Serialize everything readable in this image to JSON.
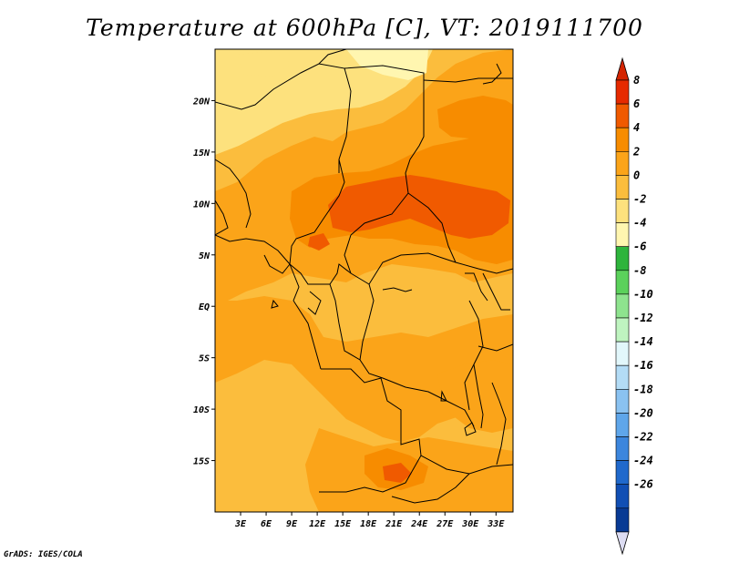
{
  "title": "Temperature at 600hPa [C], VT: 2019111700",
  "credit": "GrADS: IGES/COLA",
  "map": {
    "lon_range": [
      0,
      35
    ],
    "lat_range": [
      -20,
      25
    ],
    "lat_ticks": [
      {
        "value": 20,
        "label": "20N"
      },
      {
        "value": 15,
        "label": "15N"
      },
      {
        "value": 10,
        "label": "10N"
      },
      {
        "value": 5,
        "label": "5N"
      },
      {
        "value": 0,
        "label": "EQ"
      },
      {
        "value": -5,
        "label": "5S"
      },
      {
        "value": -10,
        "label": "10S"
      },
      {
        "value": -15,
        "label": "15S"
      }
    ],
    "lon_ticks": [
      {
        "value": 3,
        "label": "3E"
      },
      {
        "value": 6,
        "label": "6E"
      },
      {
        "value": 9,
        "label": "9E"
      },
      {
        "value": 12,
        "label": "12E"
      },
      {
        "value": 15,
        "label": "15E"
      },
      {
        "value": 18,
        "label": "18E"
      },
      {
        "value": 21,
        "label": "21E"
      },
      {
        "value": 24,
        "label": "24E"
      },
      {
        "value": 27,
        "label": "27E"
      },
      {
        "value": 30,
        "label": "30E"
      },
      {
        "value": 33,
        "label": "33E"
      }
    ]
  },
  "colorbar": {
    "levels": [
      "8",
      "6",
      "4",
      "2",
      "0",
      "-2",
      "-4",
      "-6",
      "-8",
      "-10",
      "-12",
      "-14",
      "-16",
      "-18",
      "-20",
      "-22",
      "-24",
      "-26"
    ],
    "colors": [
      "#e62a00",
      "#f05a00",
      "#f78c00",
      "#fba419",
      "#fbbd3d",
      "#fde17d",
      "#fff6b0",
      "#2eb43c",
      "#5bd15b",
      "#8ee38e",
      "#bff4c0",
      "#e2f7fb",
      "#b3dcf6",
      "#8ac2f1",
      "#5fa6ea",
      "#3c86dd",
      "#2069cc",
      "#114fb4",
      "#083a94"
    ],
    "top_arrow_color": "#d42400",
    "bottom_arrow_color": "#dcdcf2"
  }
}
